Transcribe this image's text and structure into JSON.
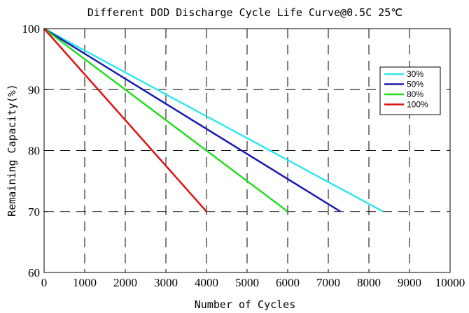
{
  "chart_data": {
    "type": "line",
    "title": "Different DOD Discharge Cycle Life Curve@0.5C 25℃",
    "xlabel": "Number of Cycles",
    "ylabel": "Remaining Capacity(%)",
    "xlim": [
      0,
      10000
    ],
    "ylim": [
      60,
      100
    ],
    "xticks": [
      0,
      1000,
      2000,
      3000,
      4000,
      5000,
      6000,
      7000,
      8000,
      9000,
      10000
    ],
    "yticks": [
      60,
      70,
      80,
      90,
      100
    ],
    "grid": true,
    "grid_style": "dashed",
    "legend_position": "top-right",
    "series": [
      {
        "name": "30%",
        "color": "#33e6f2",
        "x": [
          0,
          8350
        ],
        "y": [
          100,
          70
        ]
      },
      {
        "name": "50%",
        "color": "#1a1ab3",
        "x": [
          0,
          7300
        ],
        "y": [
          100,
          70
        ]
      },
      {
        "name": "80%",
        "color": "#22dd22",
        "x": [
          0,
          6000
        ],
        "y": [
          100,
          70
        ]
      },
      {
        "name": "100%",
        "color": "#dd1111",
        "x": [
          0,
          4000
        ],
        "y": [
          100,
          70
        ]
      }
    ]
  }
}
